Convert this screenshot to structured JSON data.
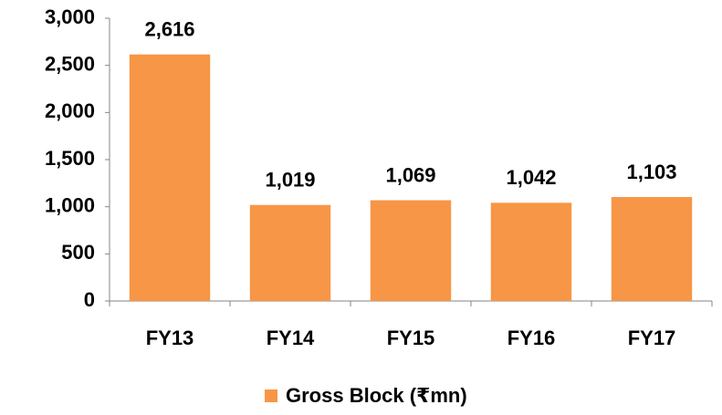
{
  "chart_data": {
    "type": "bar",
    "categories": [
      "FY13",
      "FY14",
      "FY15",
      "FY16",
      "FY17"
    ],
    "series": [
      {
        "name": "Gross Block (₹mn)",
        "color": "#f79646",
        "values": [
          2616,
          1019,
          1069,
          1042,
          1103
        ],
        "value_labels": [
          "2,616",
          "1,019",
          "1,069",
          "1,042",
          "1,103"
        ]
      }
    ],
    "ylim": [
      0,
      3000
    ],
    "yticks": [
      0,
      500,
      {
        "value": 1000,
        "label": "1,000"
      },
      {
        "value": 1500,
        "label": "1,500"
      },
      {
        "value": 2000,
        "label": "2,000"
      },
      {
        "value": 2500,
        "label": "2,500"
      },
      {
        "value": 3000,
        "label": "3,000"
      }
    ],
    "grid": false,
    "legend": "bottom"
  }
}
